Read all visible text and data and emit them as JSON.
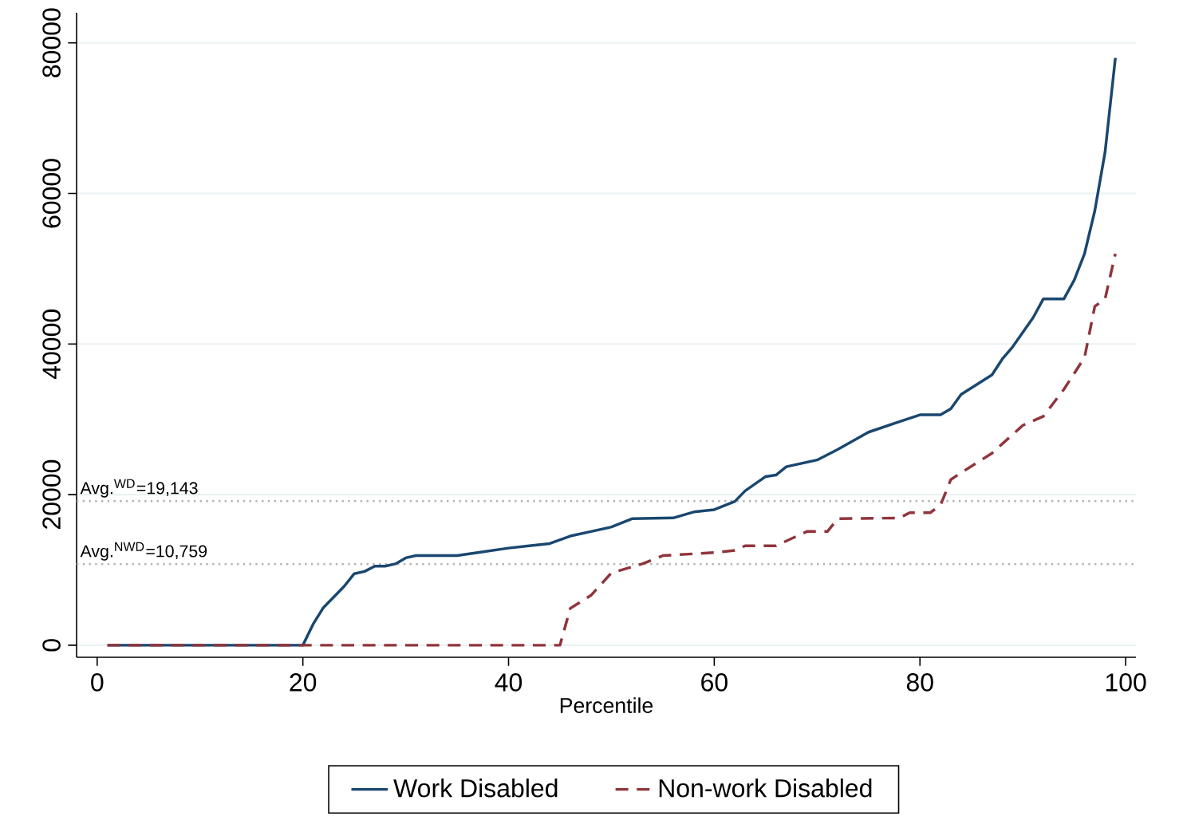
{
  "chart_data": {
    "type": "line",
    "xlabel": "Percentile",
    "xlim": [
      -2,
      101
    ],
    "ylim": [
      -1600,
      84000
    ],
    "xticks": [
      0,
      20,
      40,
      60,
      80,
      100
    ],
    "yticks": [
      0,
      20000,
      40000,
      60000,
      80000
    ],
    "grid": "y",
    "legend": "bottom",
    "series": [
      {
        "name": "Work Disabled",
        "color": "#1a476f",
        "line_style": "solid",
        "x": [
          1,
          5,
          10,
          15,
          20,
          21,
          22,
          24,
          25,
          26,
          27,
          28,
          29,
          30,
          31,
          35,
          37,
          40,
          42,
          44,
          46,
          48,
          50,
          52,
          56,
          58,
          60,
          62,
          63,
          65,
          66,
          67,
          70,
          72,
          75,
          78,
          80,
          82,
          83,
          84,
          87,
          88,
          89,
          91,
          92,
          94,
          95,
          96,
          97,
          98,
          99
        ],
        "values": [
          0,
          0,
          0,
          0,
          0,
          2800,
          5000,
          7800,
          9500,
          9800,
          10500,
          10500,
          10800,
          11600,
          11900,
          11900,
          12300,
          12900,
          13200,
          13500,
          14500,
          15100,
          15700,
          16800,
          16900,
          17700,
          18000,
          19100,
          20500,
          22400,
          22600,
          23700,
          24600,
          26000,
          28300,
          29700,
          30600,
          30600,
          31400,
          33300,
          35900,
          38000,
          39600,
          43500,
          46000,
          46000,
          48500,
          52000,
          57700,
          65500,
          78000
        ]
      },
      {
        "name": "Non-work Disabled",
        "color": "#90353b",
        "line_style": "dashed",
        "x": [
          1,
          10,
          20,
          30,
          40,
          45,
          46,
          48,
          50,
          53,
          55,
          60,
          62,
          63,
          66,
          69,
          71,
          72,
          78,
          79,
          81,
          82,
          83,
          84,
          87,
          90,
          92,
          94,
          96,
          97,
          98,
          99
        ],
        "values": [
          0,
          0,
          0,
          0,
          0,
          0,
          4900,
          6600,
          9600,
          10800,
          11900,
          12300,
          12600,
          13200,
          13200,
          15100,
          15100,
          16800,
          16900,
          17600,
          17600,
          18600,
          22000,
          22900,
          25500,
          29200,
          30400,
          34000,
          38200,
          45000,
          46000,
          52000
        ]
      }
    ],
    "ref_lines": [
      {
        "axis": "y",
        "value": 19143,
        "label": "Avg.$^{WD}$=19,143",
        "color": "#b4b4b4",
        "line_style": "dotted"
      },
      {
        "axis": "y",
        "value": 10759,
        "label": "Avg.$^{NWD}$=10,759",
        "color": "#b4b4b4",
        "line_style": "dotted"
      }
    ]
  }
}
